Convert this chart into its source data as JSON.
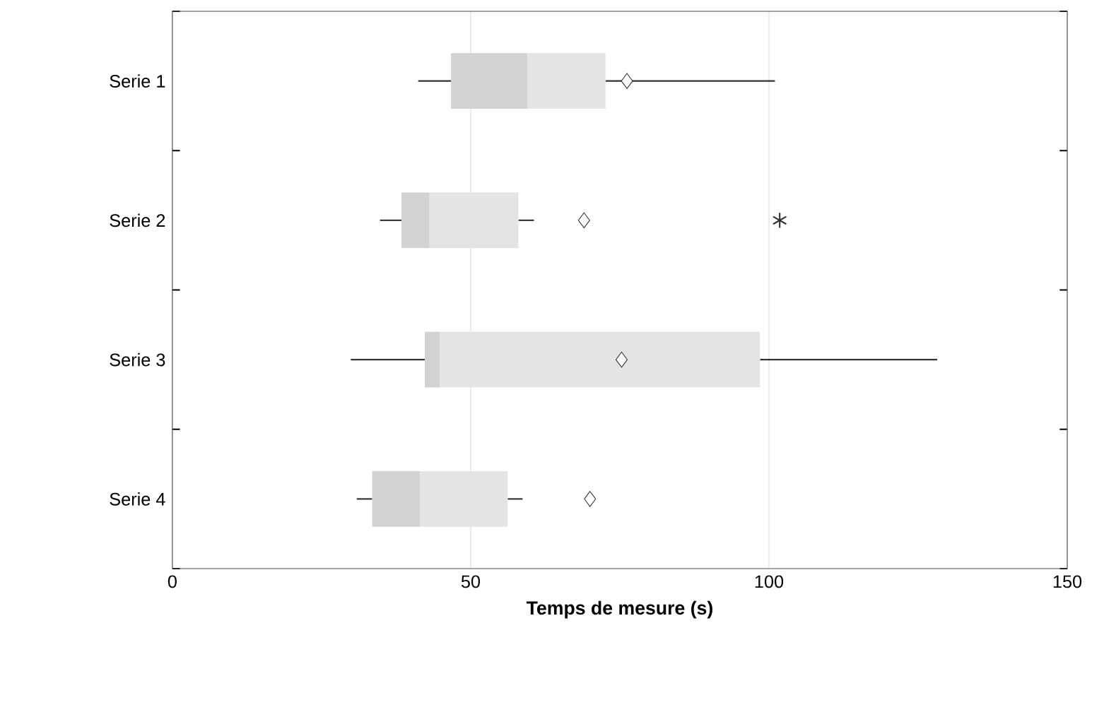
{
  "chart_data": {
    "type": "box",
    "orientation": "horizontal",
    "xlabel": "Temps de mesure (s)",
    "categories": [
      "Serie 1",
      "Serie 2",
      "Serie 3",
      "Serie 4"
    ],
    "color": "#d2d2d2",
    "xlim": [
      0,
      150
    ],
    "xticks": [
      0,
      50,
      100,
      150
    ],
    "grid": "x",
    "boxes": [
      {
        "low": 41.2,
        "q1": 46.7,
        "median": 59.5,
        "q3": 72.6,
        "high": 101,
        "mean": 76.2
      },
      {
        "low": 34.8,
        "q1": 38.4,
        "median": 43.1,
        "q3": 58,
        "high": 60.6,
        "mean": 69,
        "outliers": [
          101.8
        ]
      },
      {
        "low": 29.9,
        "q1": 42.3,
        "median": 44.8,
        "q3": 98.5,
        "high": 128.2,
        "mean": 75.3
      },
      {
        "low": 30.9,
        "q1": 33.5,
        "median": 41.5,
        "q3": 56.2,
        "high": 58.7,
        "mean": 70
      }
    ]
  }
}
